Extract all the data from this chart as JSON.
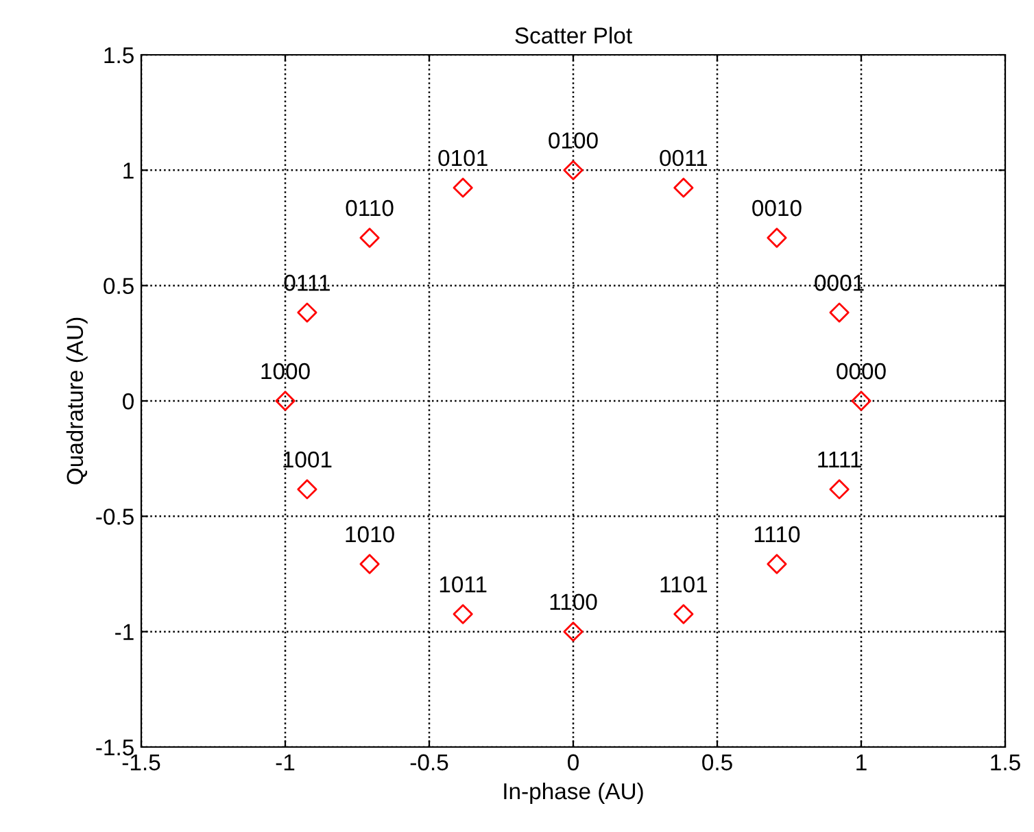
{
  "chart_data": {
    "type": "scatter",
    "title": "Scatter Plot",
    "xlabel": "In-phase (AU)",
    "ylabel": "Quadrature (AU)",
    "x": [
      1,
      0.924,
      0.707,
      0.383,
      0,
      -0.383,
      -0.707,
      -0.924,
      -1,
      -0.924,
      -0.707,
      -0.383,
      0,
      0.383,
      0.707,
      0.924
    ],
    "series": [
      {
        "color": "#ff0000",
        "values": [
          0,
          0.383,
          0.707,
          0.924,
          1,
          0.924,
          0.707,
          0.383,
          0,
          -0.383,
          -0.707,
          -0.924,
          -1,
          -0.924,
          -0.707,
          -0.383
        ]
      }
    ],
    "marker": "diamond",
    "grid": true,
    "line_style": "dotted",
    "xlim": [
      -1.5,
      1.5
    ],
    "ylim": [
      -1.5,
      1.5
    ],
    "xticks": [
      -1.5,
      -1,
      -0.5,
      0,
      0.5,
      1,
      1.5
    ],
    "yticks": [
      -1.5,
      -1,
      -0.5,
      0,
      0.5,
      1,
      1.5
    ],
    "annotations": [
      {
        "text": "0000",
        "x": 1,
        "y": 0
      },
      {
        "text": "0001",
        "x": 0.924,
        "y": 0.383
      },
      {
        "text": "0010",
        "x": 0.707,
        "y": 0.707
      },
      {
        "text": "0011",
        "x": 0.383,
        "y": 0.924
      },
      {
        "text": "0100",
        "x": 0,
        "y": 1
      },
      {
        "text": "0101",
        "x": -0.383,
        "y": 0.924
      },
      {
        "text": "0110",
        "x": -0.707,
        "y": 0.707
      },
      {
        "text": "0111",
        "x": -0.924,
        "y": 0.383
      },
      {
        "text": "1000",
        "x": -1,
        "y": 0
      },
      {
        "text": "1001",
        "x": -0.924,
        "y": -0.383
      },
      {
        "text": "1010",
        "x": -0.707,
        "y": -0.707
      },
      {
        "text": "1011",
        "x": -0.383,
        "y": -0.924
      },
      {
        "text": "1100",
        "x": 0,
        "y": -1
      },
      {
        "text": "1101",
        "x": 0.383,
        "y": -0.924
      },
      {
        "text": "1110",
        "x": 0.707,
        "y": -0.707
      },
      {
        "text": "1111",
        "x": 0.924,
        "y": -0.383
      }
    ]
  }
}
